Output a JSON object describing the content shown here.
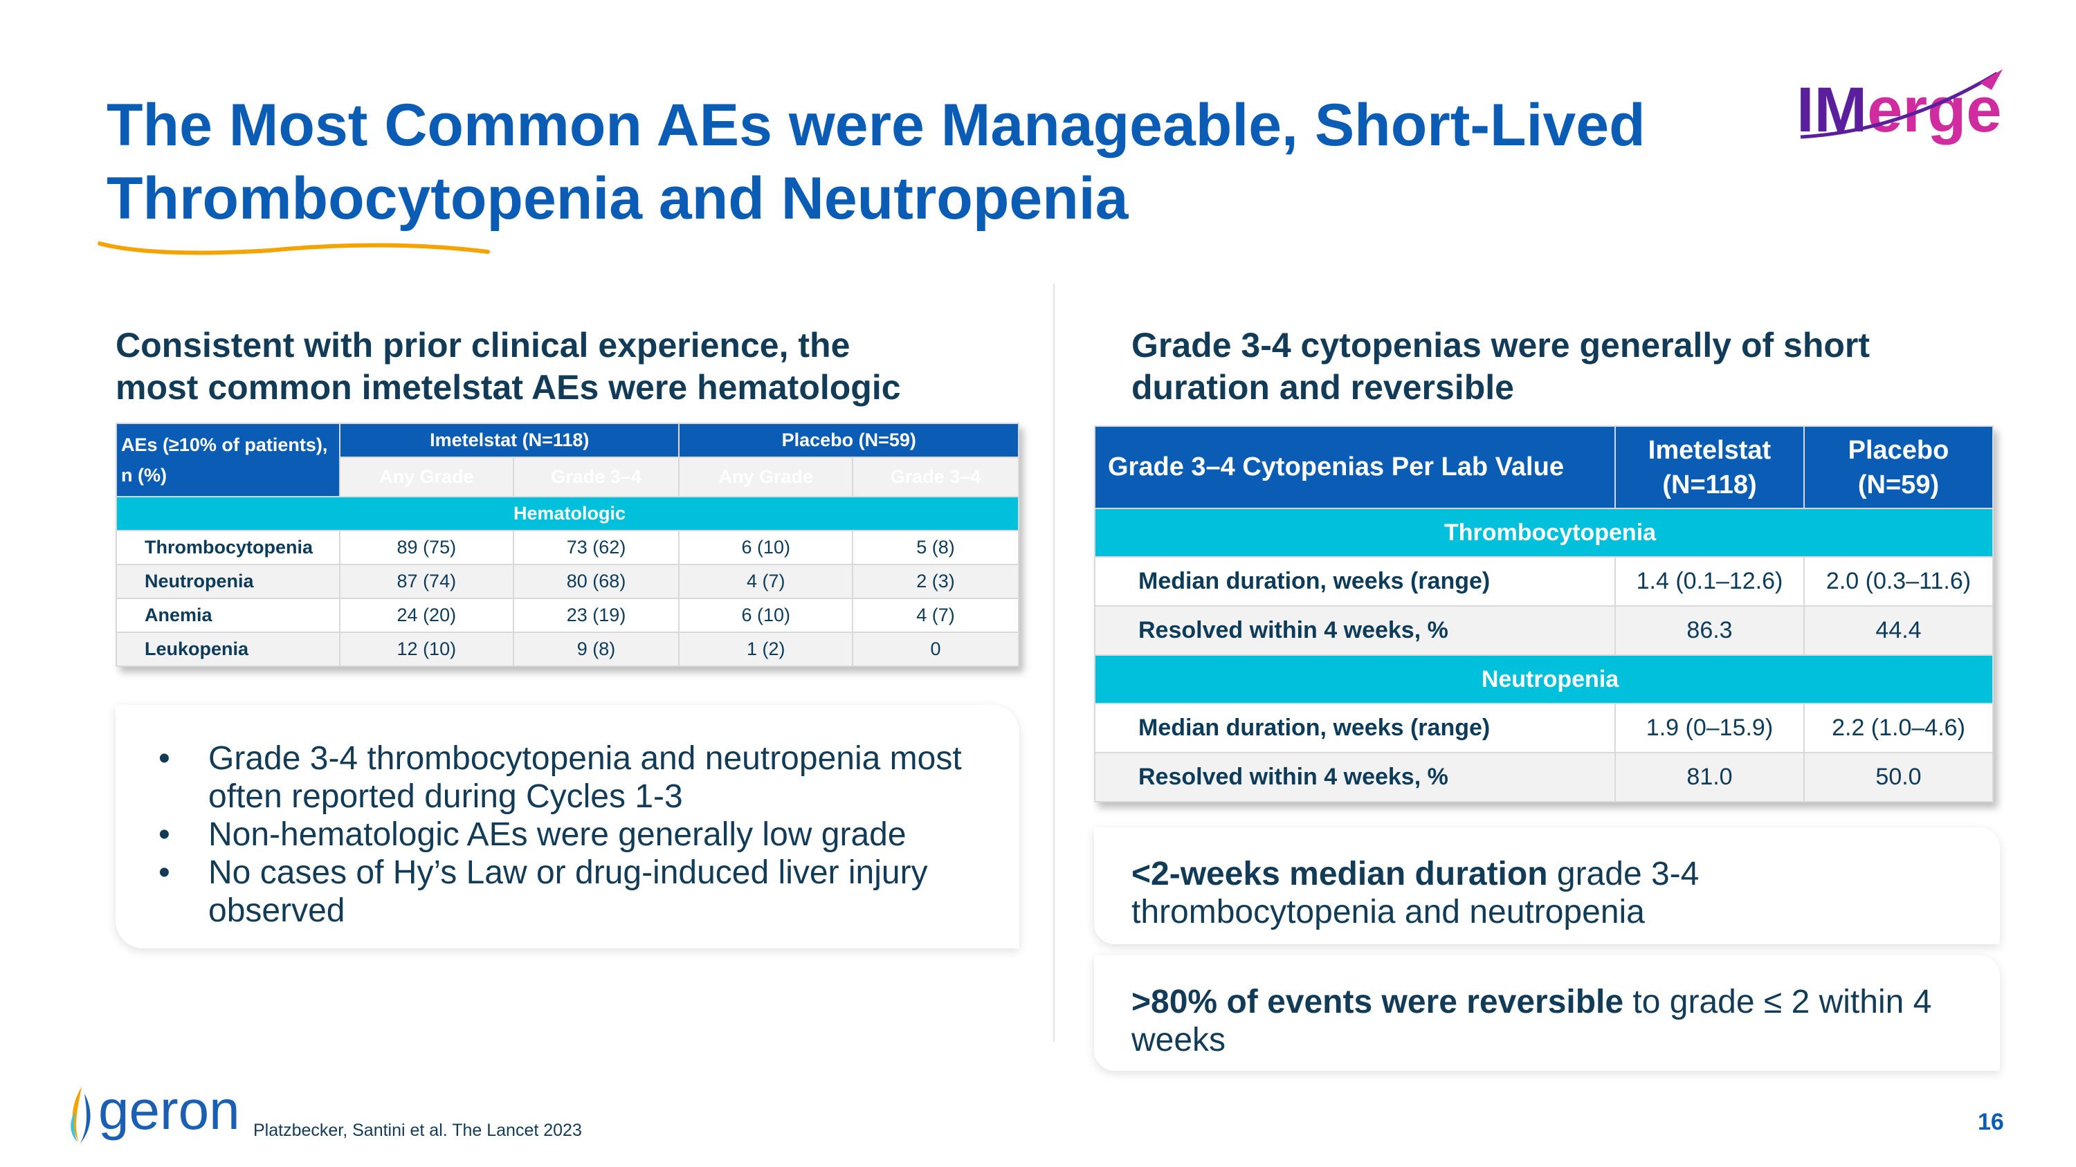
{
  "title": {
    "line1": "The Most Common AEs were Manageable, Short-Lived",
    "line2": "Thrombocytopenia and Neutropenia"
  },
  "logo": {
    "text": "IMerge",
    "colors": {
      "I": "#5b1f9e",
      "erge": "#d12c9f"
    }
  },
  "left": {
    "subtitle1": "Consistent with prior clinical experience, the",
    "subtitle2": "most common imetelstat AEs were hematologic",
    "table": {
      "corner": "AEs (≥10% of patients), n (%)",
      "group1": "Imetelstat (N=118)",
      "group2": "Placebo (N=59)",
      "cols": [
        "Any Grade",
        "Grade 3–4",
        "Any Grade",
        "Grade 3–4"
      ],
      "section": "Hematologic",
      "rows": [
        {
          "label": "Thrombocytopenia",
          "values": [
            "89 (75)",
            "73 (62)",
            "6 (10)",
            "5 (8)"
          ]
        },
        {
          "label": "Neutropenia",
          "values": [
            "87 (74)",
            "80 (68)",
            "4 (7)",
            "2 (3)"
          ]
        },
        {
          "label": "Anemia",
          "values": [
            "24 (20)",
            "23 (19)",
            "6 (10)",
            "4 (7)"
          ]
        },
        {
          "label": "Leukopenia",
          "values": [
            "12 (10)",
            "9 (8)",
            "1 (2)",
            "0"
          ]
        }
      ]
    },
    "bullets": [
      "Grade 3-4 thrombocytopenia and neutropenia most often reported during Cycles 1-3",
      "Non-hematologic AEs were generally low grade",
      "No cases of Hy’s Law or drug-induced liver injury observed"
    ]
  },
  "right": {
    "subtitle1": "Grade 3-4 cytopenias were generally of short",
    "subtitle2": "duration and reversible",
    "table": {
      "corner": "Grade 3–4  Cytopenias Per Lab Value",
      "col1": [
        "Imetelstat",
        "(N=118)"
      ],
      "col2": [
        "Placebo",
        "(N=59)"
      ],
      "sections": [
        {
          "name": "Thrombocytopenia",
          "rows": [
            {
              "label": "Median duration, weeks (range)",
              "values": [
                "1.4 (0.1–12.6)",
                "2.0 (0.3–11.6)"
              ]
            },
            {
              "label": "Resolved within 4 weeks, %",
              "values": [
                "86.3",
                "44.4"
              ]
            }
          ]
        },
        {
          "name": "Neutropenia",
          "rows": [
            {
              "label": "Median duration, weeks (range)",
              "values": [
                "1.9 (0–15.9)",
                "2.2 (1.0–4.6)"
              ]
            },
            {
              "label": "Resolved within 4 weeks, %",
              "values": [
                "81.0",
                "50.0"
              ]
            }
          ]
        }
      ]
    },
    "callout1": {
      "bold": "<2-weeks median duration",
      "rest": " grade 3-4 thrombocytopenia and neutropenia"
    },
    "callout2": {
      "bold": ">80% of events were reversible",
      "rest": " to grade ≤ 2 within 4 weeks"
    }
  },
  "footer": {
    "brand": "geron",
    "citation": "Platzbecker, Santini et al. The Lancet 2023",
    "page": "16"
  },
  "colors": {
    "title": "#0b5cb5",
    "header_blue": "#0b5cb5",
    "header_dark": "#0a3b5c",
    "section_cyan": "#00c0dc",
    "accent_orange": "#f5a300"
  }
}
